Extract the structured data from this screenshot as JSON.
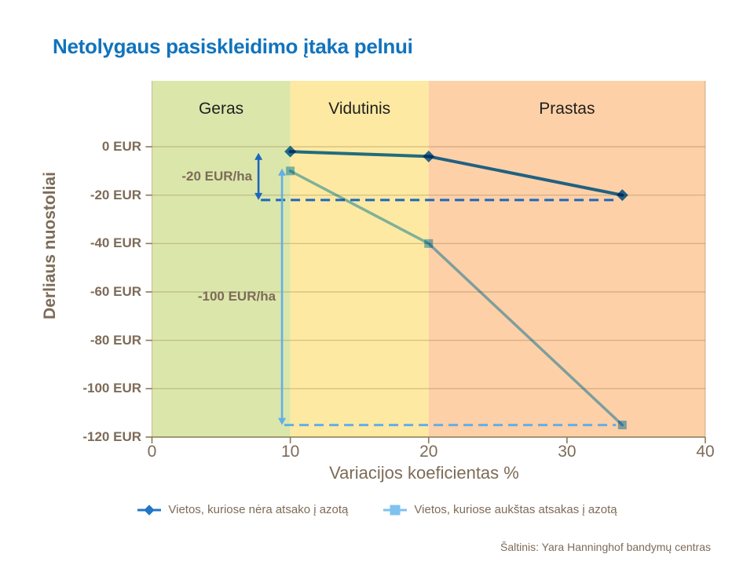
{
  "page": {
    "title": "Netolygaus pasiskleidimo įtaka pelnui",
    "source": "Šaltinis: Yara Hanninghof bandymų centras"
  },
  "colors": {
    "title_blue": "#1173bc",
    "text_brown": "#7d6b58",
    "axis_brown": "#8a7a55",
    "gridline": "rgba(125,95,45,0.33)",
    "zone_good": "#dbe6ab",
    "zone_average": "#fde9a2",
    "zone_poor": "#fdd0a7",
    "series_dark_blue": "#2176c7",
    "series_light_blue": "#7fc2f0",
    "annotation_dark_blue": "#1c67bd",
    "annotation_light_blue": "#63aee6"
  },
  "chart_data": {
    "type": "line",
    "title": "Netolygaus pasiskleidimo įtaka pelnui",
    "xlabel": "Variacijos koeficientas %",
    "ylabel": "Derliaus nuostoliai",
    "xlim": [
      0,
      40
    ],
    "ylim": [
      -120,
      27
    ],
    "xticks": [
      0,
      10,
      20,
      30,
      40
    ],
    "yticks": [
      0,
      -20,
      -40,
      -60,
      -80,
      -100,
      -120
    ],
    "ytick_labels": [
      "0 EUR",
      "-20 EUR",
      "-40 EUR",
      "-60 EUR",
      "-80 EUR",
      "-100 EUR",
      "-120 EUR"
    ],
    "grid": "horizontal",
    "legend_position": "bottom",
    "zones": [
      {
        "label": "Geras",
        "from": 0,
        "to": 10,
        "color": "#dbe6ab"
      },
      {
        "label": "Vidutinis",
        "from": 10,
        "to": 20,
        "color": "#fde9a2"
      },
      {
        "label": "Prastas",
        "from": 20,
        "to": 40,
        "color": "#fdd0a7"
      }
    ],
    "series": [
      {
        "name": "Vietos, kuriose nėra atsako į azotą",
        "marker": "diamond",
        "color": "#2176c7",
        "x": [
          10,
          20,
          34
        ],
        "y": [
          -2,
          -4,
          -20
        ]
      },
      {
        "name": "Vietos, kuriose aukštas atsakas į azotą",
        "marker": "square",
        "color": "#7fc2f0",
        "x": [
          10,
          20,
          34
        ],
        "y": [
          -10,
          -40,
          -115
        ]
      }
    ],
    "annotations": [
      {
        "label": "-20 EUR/ha",
        "color": "#1c67bd",
        "x": 7.7,
        "y_from": -2.5,
        "y_to": -22,
        "dash_to_x": 34
      },
      {
        "label": "-100 EUR/ha",
        "color": "#63aee6",
        "x": 9.4,
        "y_from": -9,
        "y_to": -115,
        "dash_to_x": 34
      }
    ]
  }
}
